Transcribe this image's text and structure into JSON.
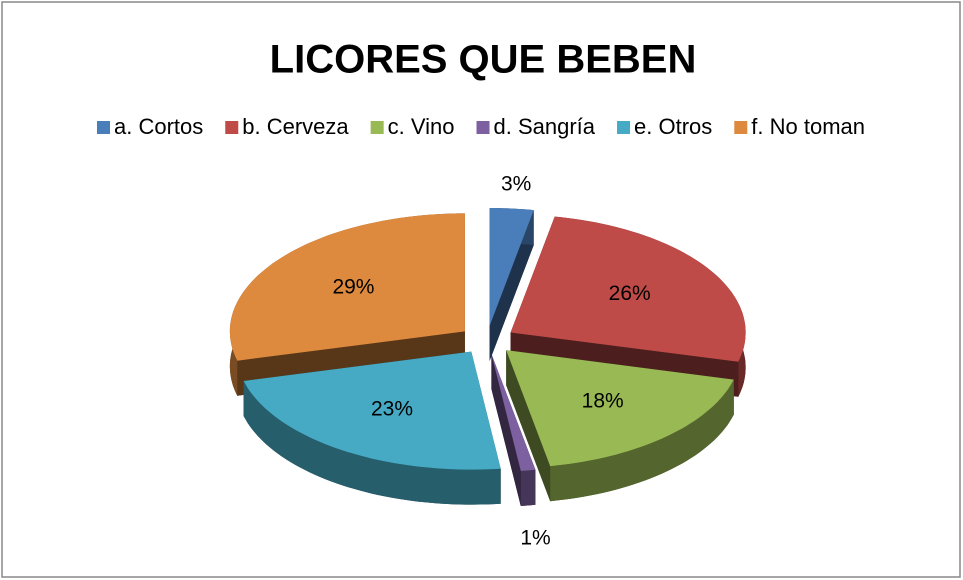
{
  "chart_data": {
    "type": "pie",
    "title": "LICORES QUE BEBEN",
    "categories": [
      "a. Cortos",
      "b. Cerveza",
      "c. Vino",
      "d. Sangría",
      "e. Otros",
      "f. No toman"
    ],
    "values": [
      3,
      26,
      18,
      1,
      23,
      29
    ],
    "value_labels": [
      "3%",
      "26%",
      "18%",
      "1%",
      "23%",
      "29%"
    ],
    "colors": [
      "#4a7ebb",
      "#be4b48",
      "#98b954",
      "#7d60a0",
      "#46aac5",
      "#dd8a3f"
    ],
    "legend": "top"
  }
}
